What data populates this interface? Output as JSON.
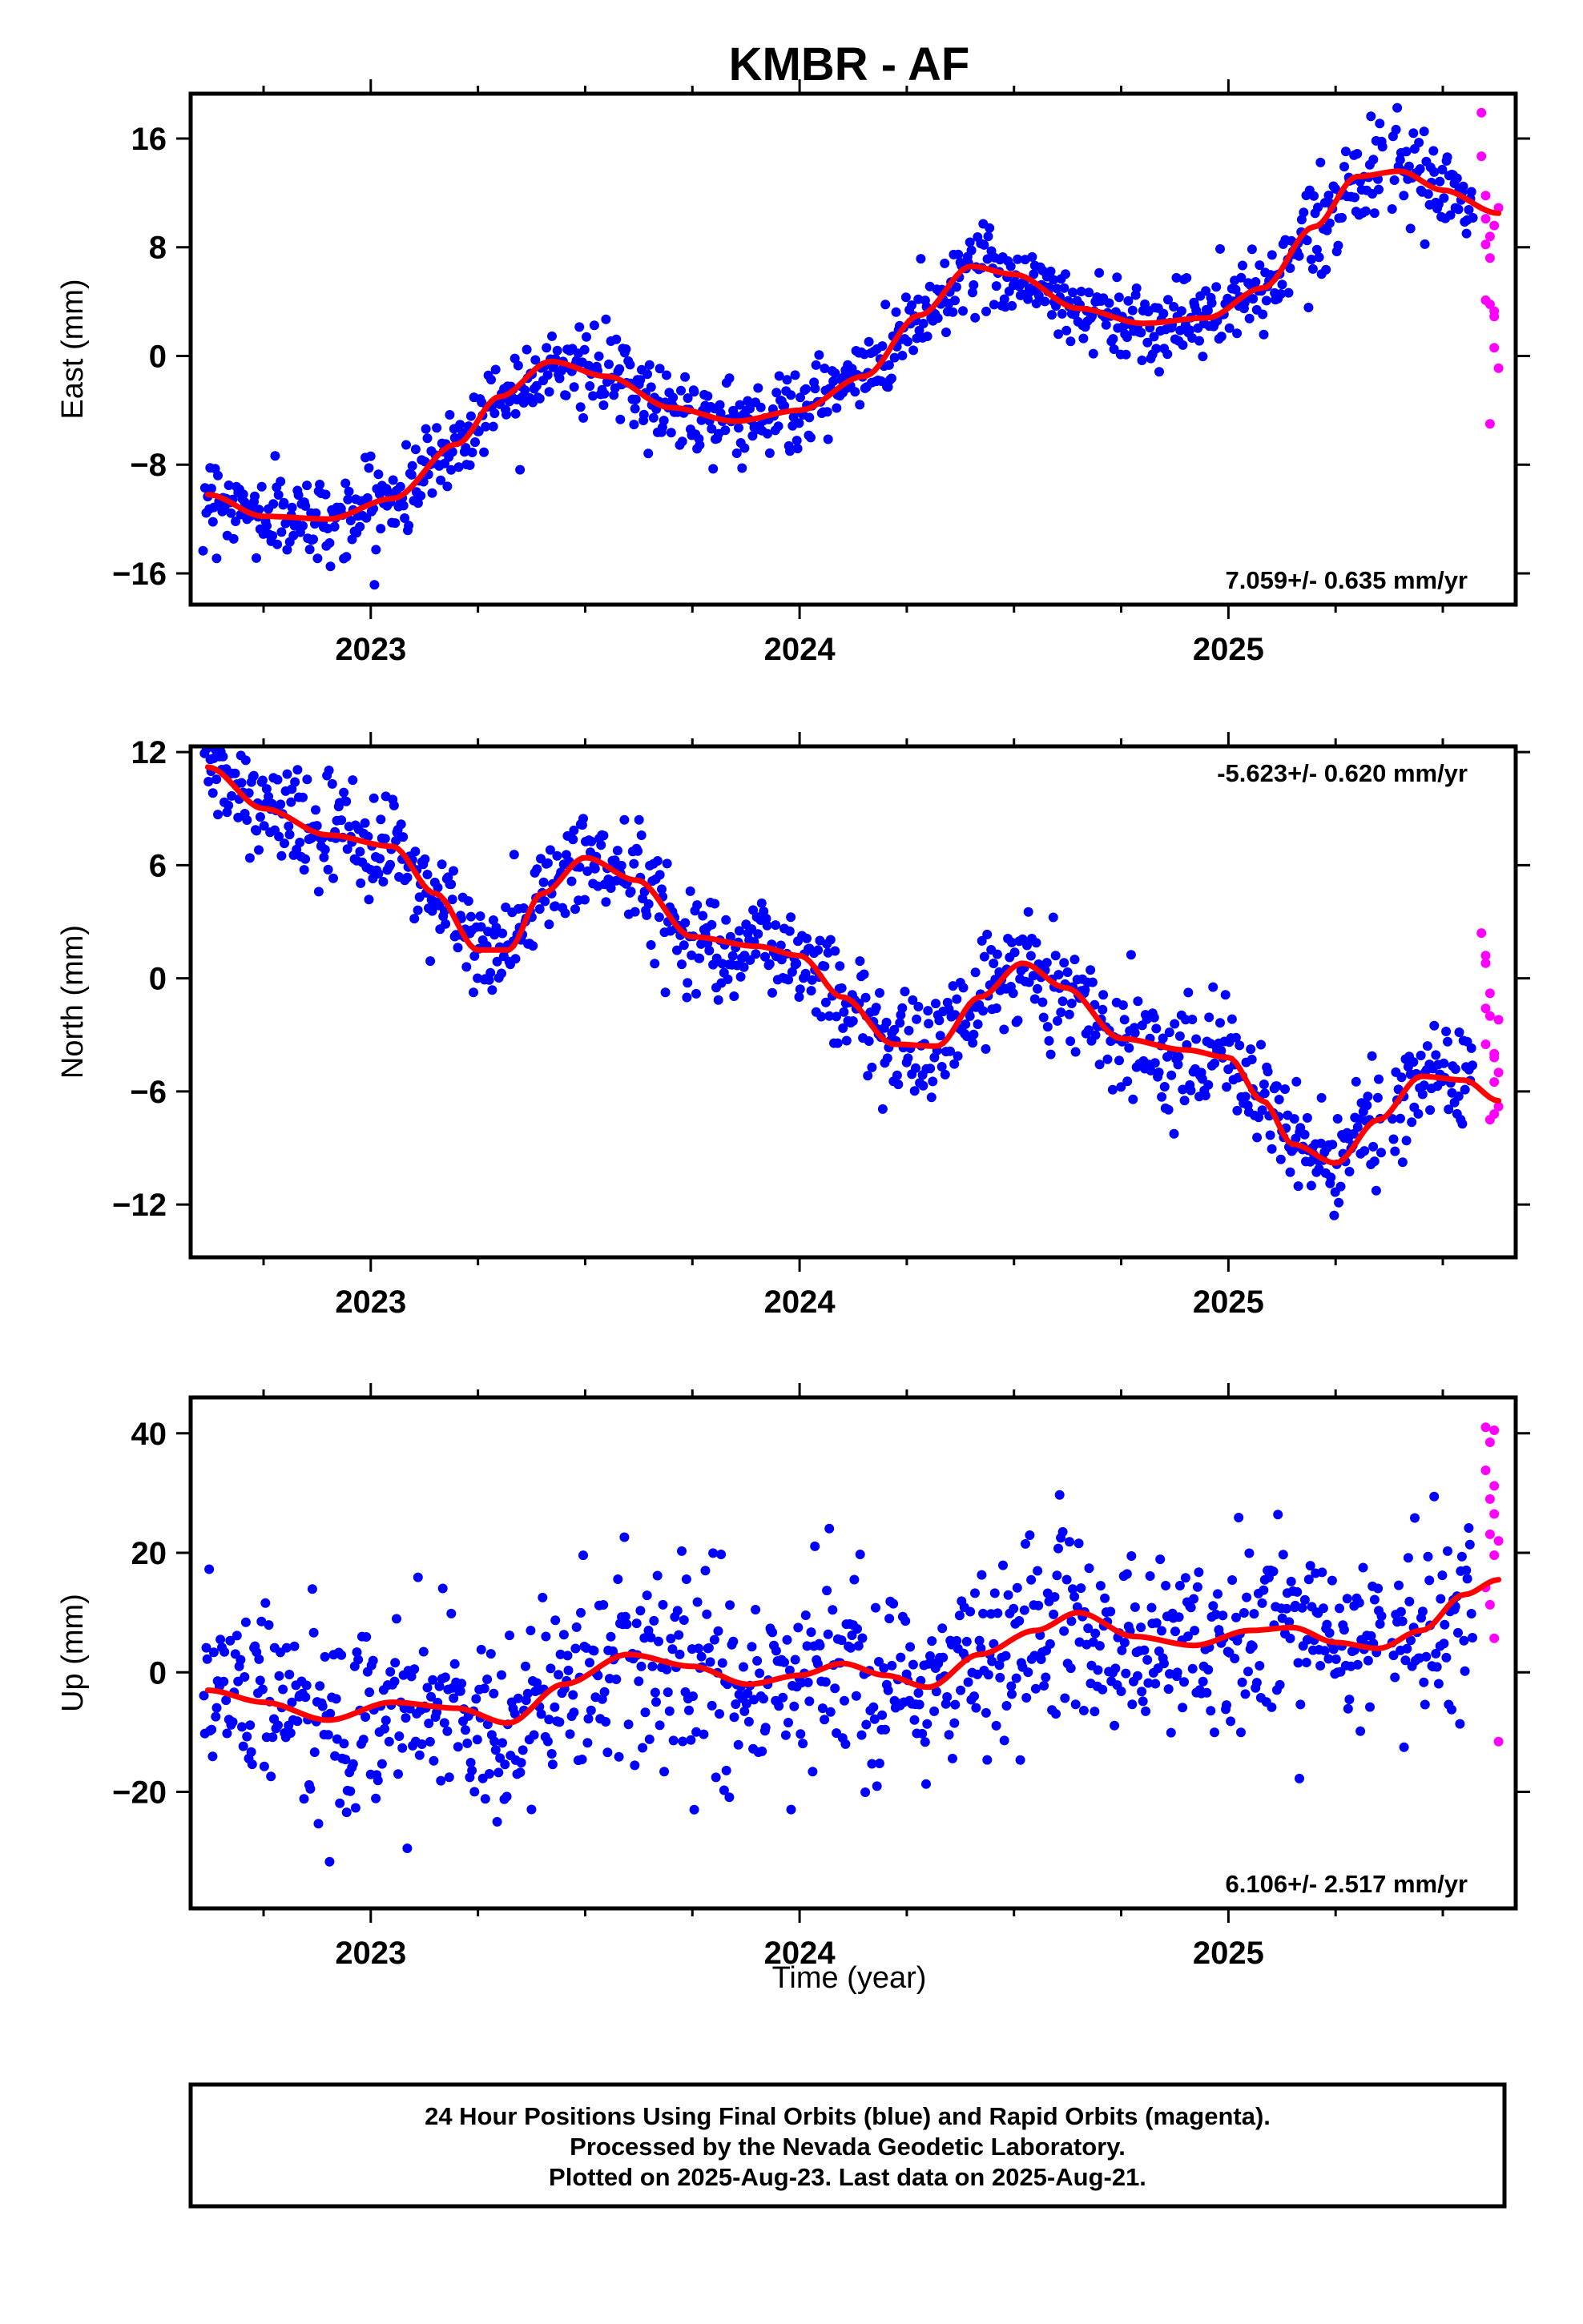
{
  "chart_data": [
    {
      "type": "scatter",
      "title": "KMBR - AF",
      "ylabel": "East (mm)",
      "xlabel": "",
      "xlim": [
        2022.58,
        2025.67
      ],
      "ylim": [
        -18.3,
        19.3
      ],
      "x_ticks": [
        2023,
        2024,
        2025
      ],
      "x_tick_labels": [
        "2023",
        "2024",
        "2025"
      ],
      "y_ticks": [
        16,
        8,
        0,
        -8,
        -16
      ],
      "y_tick_labels": [
        "16",
        "8",
        "0",
        "−8",
        "−16"
      ],
      "rate_annotation": "7.059+/- 0.635 mm/yr",
      "rate_position": "bottom-right",
      "grid": false,
      "series": [
        {
          "label": "final-orbits",
          "color": "#0000ff",
          "kind": "points",
          "trend_knots": [
            [
              2022.62,
              -10.2
            ],
            [
              2022.75,
              -11.8
            ],
            [
              2022.9,
              -12.0
            ],
            [
              2023.05,
              -10.5
            ],
            [
              2023.2,
              -6.5
            ],
            [
              2023.3,
              -3.0
            ],
            [
              2023.42,
              -0.4
            ],
            [
              2023.55,
              -1.5
            ],
            [
              2023.7,
              -3.8
            ],
            [
              2023.85,
              -4.8
            ],
            [
              2024.0,
              -4.0
            ],
            [
              2024.15,
              -1.5
            ],
            [
              2024.28,
              3.0
            ],
            [
              2024.4,
              6.6
            ],
            [
              2024.5,
              6.0
            ],
            [
              2024.65,
              3.5
            ],
            [
              2024.8,
              2.4
            ],
            [
              2024.95,
              2.8
            ],
            [
              2025.08,
              5.0
            ],
            [
              2025.2,
              9.5
            ],
            [
              2025.3,
              13.2
            ],
            [
              2025.4,
              13.6
            ],
            [
              2025.5,
              12.2
            ],
            [
              2025.6,
              10.8
            ]
          ],
          "scatter_sigma": 1.5
        },
        {
          "label": "rapid-orbits",
          "color": "#ff00ff",
          "kind": "points",
          "x": [
            2025.59,
            2025.59,
            2025.6,
            2025.6,
            2025.61,
            2025.61,
            2025.6,
            2025.61,
            2025.62,
            2025.62,
            2025.62,
            2025.63,
            2025.63,
            2025.61,
            2025.62,
            2025.6
          ],
          "y": [
            17.9,
            14.7,
            11.8,
            10.1,
            8.8,
            7.2,
            4.1,
            3.8,
            3.3,
            2.9,
            0.6,
            -0.9,
            10.9,
            -5.0,
            9.6,
            8.2
          ]
        },
        {
          "label": "trend-fit",
          "color": "#ff0000",
          "kind": "line",
          "x": [
            2022.62,
            2022.75,
            2022.9,
            2023.05,
            2023.2,
            2023.3,
            2023.42,
            2023.55,
            2023.7,
            2023.85,
            2024.0,
            2024.15,
            2024.28,
            2024.4,
            2024.5,
            2024.65,
            2024.8,
            2024.95,
            2025.08,
            2025.2,
            2025.3,
            2025.4,
            2025.5,
            2025.63
          ],
          "y": [
            -10.2,
            -11.8,
            -12.0,
            -10.5,
            -6.5,
            -3.0,
            -0.4,
            -1.5,
            -3.8,
            -4.8,
            -4.0,
            -1.5,
            3.0,
            6.6,
            6.0,
            3.5,
            2.4,
            2.8,
            5.0,
            9.5,
            13.2,
            13.6,
            12.2,
            10.5
          ]
        }
      ]
    },
    {
      "type": "scatter",
      "title": "",
      "ylabel": "North (mm)",
      "xlabel": "",
      "xlim": [
        2022.58,
        2025.67
      ],
      "ylim": [
        -14.8,
        12.3
      ],
      "x_ticks": [
        2023,
        2024,
        2025
      ],
      "x_tick_labels": [
        "2023",
        "2024",
        "2025"
      ],
      "y_ticks": [
        12,
        6,
        0,
        -6,
        -12
      ],
      "y_tick_labels": [
        "12",
        "6",
        "0",
        "−6",
        "−12"
      ],
      "rate_annotation": "-5.623+/- 0.620 mm/yr",
      "rate_position": "top-right",
      "grid": false,
      "series": [
        {
          "label": "final-orbits",
          "color": "#0000ff",
          "kind": "points",
          "trend_knots": [
            [
              2022.62,
              11.2
            ],
            [
              2022.75,
              9.0
            ],
            [
              2022.9,
              7.6
            ],
            [
              2023.05,
              7.0
            ],
            [
              2023.15,
              4.5
            ],
            [
              2023.25,
              1.5
            ],
            [
              2023.32,
              1.5
            ],
            [
              2023.4,
              4.5
            ],
            [
              2023.5,
              6.4
            ],
            [
              2023.62,
              5.2
            ],
            [
              2023.75,
              2.2
            ],
            [
              2023.9,
              1.7
            ],
            [
              2024.0,
              1.2
            ],
            [
              2024.1,
              -1.0
            ],
            [
              2024.22,
              -3.5
            ],
            [
              2024.32,
              -3.6
            ],
            [
              2024.42,
              -1.0
            ],
            [
              2024.52,
              0.8
            ],
            [
              2024.62,
              -0.5
            ],
            [
              2024.75,
              -3.2
            ],
            [
              2024.9,
              -3.8
            ],
            [
              2025.0,
              -4.2
            ],
            [
              2025.08,
              -6.5
            ],
            [
              2025.15,
              -8.8
            ],
            [
              2025.25,
              -9.8
            ],
            [
              2025.35,
              -7.5
            ],
            [
              2025.45,
              -5.2
            ],
            [
              2025.55,
              -5.4
            ],
            [
              2025.6,
              -6.0
            ]
          ],
          "scatter_sigma": 1.4
        },
        {
          "label": "rapid-orbits",
          "color": "#ff00ff",
          "kind": "points",
          "x": [
            2025.59,
            2025.6,
            2025.6,
            2025.61,
            2025.61,
            2025.6,
            2025.62,
            2025.62,
            2025.63,
            2025.62,
            2025.61,
            2025.63,
            2025.63,
            2025.6,
            2025.62
          ],
          "y": [
            2.4,
            1.2,
            0.8,
            -0.8,
            -2.0,
            -3.5,
            -4.2,
            -5.5,
            -6.8,
            -7.2,
            -7.5,
            -5.0,
            -2.2,
            -1.6,
            -4.0
          ]
        },
        {
          "label": "trend-fit",
          "color": "#ff0000",
          "kind": "line",
          "x": [
            2022.62,
            2022.75,
            2022.9,
            2023.05,
            2023.15,
            2023.25,
            2023.32,
            2023.4,
            2023.5,
            2023.62,
            2023.75,
            2023.9,
            2024.0,
            2024.1,
            2024.22,
            2024.32,
            2024.42,
            2024.52,
            2024.62,
            2024.75,
            2024.9,
            2025.0,
            2025.08,
            2025.15,
            2025.25,
            2025.35,
            2025.45,
            2025.55,
            2025.63
          ],
          "y": [
            11.2,
            9.0,
            7.6,
            7.0,
            4.5,
            1.5,
            1.5,
            4.5,
            6.4,
            5.2,
            2.2,
            1.7,
            1.2,
            -1.0,
            -3.5,
            -3.6,
            -1.0,
            0.8,
            -0.5,
            -3.2,
            -3.8,
            -4.2,
            -6.5,
            -8.8,
            -9.8,
            -7.5,
            -5.2,
            -5.4,
            -6.5
          ]
        }
      ]
    },
    {
      "type": "scatter",
      "title": "",
      "ylabel": "Up (mm)",
      "xlabel": "Time (year)",
      "xlim": [
        2022.58,
        2025.67
      ],
      "ylim": [
        -39.5,
        46.0
      ],
      "x_ticks": [
        2023,
        2024,
        2025
      ],
      "x_tick_labels": [
        "2023",
        "2024",
        "2025"
      ],
      "y_ticks": [
        40,
        20,
        0,
        -20
      ],
      "y_tick_labels": [
        "40",
        "20",
        "0",
        "−20"
      ],
      "rate_annotation": "6.106+/- 2.517 mm/yr",
      "rate_position": "bottom-right",
      "grid": false,
      "series": [
        {
          "label": "final-orbits",
          "color": "#0000ff",
          "kind": "points",
          "trend_knots": [
            [
              2022.62,
              -3
            ],
            [
              2022.75,
              -5
            ],
            [
              2022.9,
              -8
            ],
            [
              2023.05,
              -5
            ],
            [
              2023.2,
              -6
            ],
            [
              2023.32,
              -8.5
            ],
            [
              2023.45,
              -2
            ],
            [
              2023.6,
              3
            ],
            [
              2023.75,
              1
            ],
            [
              2023.88,
              -2
            ],
            [
              2024.0,
              -0.5
            ],
            [
              2024.1,
              1.5
            ],
            [
              2024.2,
              -0.5
            ],
            [
              2024.3,
              -2.5
            ],
            [
              2024.42,
              3
            ],
            [
              2024.55,
              7
            ],
            [
              2024.65,
              10
            ],
            [
              2024.78,
              6
            ],
            [
              2024.92,
              4.5
            ],
            [
              2025.05,
              7
            ],
            [
              2025.15,
              7.5
            ],
            [
              2025.25,
              5
            ],
            [
              2025.35,
              4
            ],
            [
              2025.45,
              7
            ],
            [
              2025.55,
              13
            ]
          ],
          "scatter_sigma": 8.0
        },
        {
          "label": "rapid-orbits",
          "color": "#ff00ff",
          "kind": "points",
          "x": [
            2025.6,
            2025.61,
            2025.6,
            2025.62,
            2025.61,
            2025.62,
            2025.61,
            2025.63,
            2025.62,
            2025.6,
            2025.61,
            2025.62,
            2025.63,
            2025.62
          ],
          "y": [
            41.0,
            38.5,
            33.8,
            31.2,
            29.0,
            26.5,
            23.1,
            22.0,
            19.6,
            14.2,
            11.3,
            5.7,
            -11.6,
            40.5
          ]
        },
        {
          "label": "trend-fit",
          "color": "#ff0000",
          "kind": "line",
          "x": [
            2022.62,
            2022.75,
            2022.9,
            2023.05,
            2023.2,
            2023.32,
            2023.45,
            2023.6,
            2023.75,
            2023.88,
            2024.0,
            2024.1,
            2024.2,
            2024.3,
            2024.42,
            2024.55,
            2024.65,
            2024.78,
            2024.92,
            2025.05,
            2025.15,
            2025.25,
            2025.35,
            2025.45,
            2025.55,
            2025.63
          ],
          "y": [
            -3,
            -5,
            -8,
            -5,
            -6,
            -8.5,
            -2,
            3,
            1,
            -2,
            -0.5,
            1.5,
            -0.5,
            -2.5,
            3,
            7,
            10,
            6,
            4.5,
            7,
            7.5,
            5,
            4,
            7,
            13,
            15.5
          ]
        }
      ]
    }
  ],
  "footer": {
    "line1": "24 Hour Positions Using Final Orbits (blue) and Rapid Orbits (magenta).",
    "line2": "Processed by the Nevada Geodetic Laboratory.",
    "line3": "Plotted on 2025-Aug-23. Last data on 2025-Aug-21."
  }
}
